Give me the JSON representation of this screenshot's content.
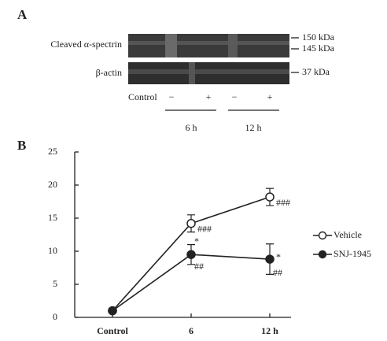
{
  "panel_a": {
    "label": "A",
    "rows": [
      "Cleaved α-spectrin",
      "β-actin"
    ],
    "markers": [
      "150 kDa",
      "145 kDa",
      "37 kDa"
    ],
    "control_label": "Control",
    "lanes": [
      "−",
      "+",
      "−",
      "+"
    ],
    "times": [
      "6 h",
      "12 h"
    ]
  },
  "chart_data": {
    "type": "line",
    "panel_label": "B",
    "categories": [
      "Control",
      "6",
      "12 h"
    ],
    "series": [
      {
        "name": "Vehicle",
        "color": "#222",
        "marker_fill": "#ffffff",
        "values": [
          1,
          14.2,
          18.2
        ],
        "errors": [
          0.2,
          1.3,
          1.3
        ],
        "annotations": [
          null,
          [
            "###"
          ],
          [
            "###"
          ]
        ]
      },
      {
        "name": "SNJ-1945",
        "color": "#222",
        "marker_fill": "#222222",
        "values": [
          1,
          9.5,
          8.8
        ],
        "errors": [
          0.2,
          1.5,
          2.3
        ],
        "annotations": [
          null,
          [
            "*",
            "##"
          ],
          [
            "*",
            "##"
          ]
        ]
      }
    ],
    "ylim": [
      0,
      25
    ],
    "yticks": [
      0,
      5,
      10,
      15,
      20,
      25
    ],
    "legend": "right"
  }
}
